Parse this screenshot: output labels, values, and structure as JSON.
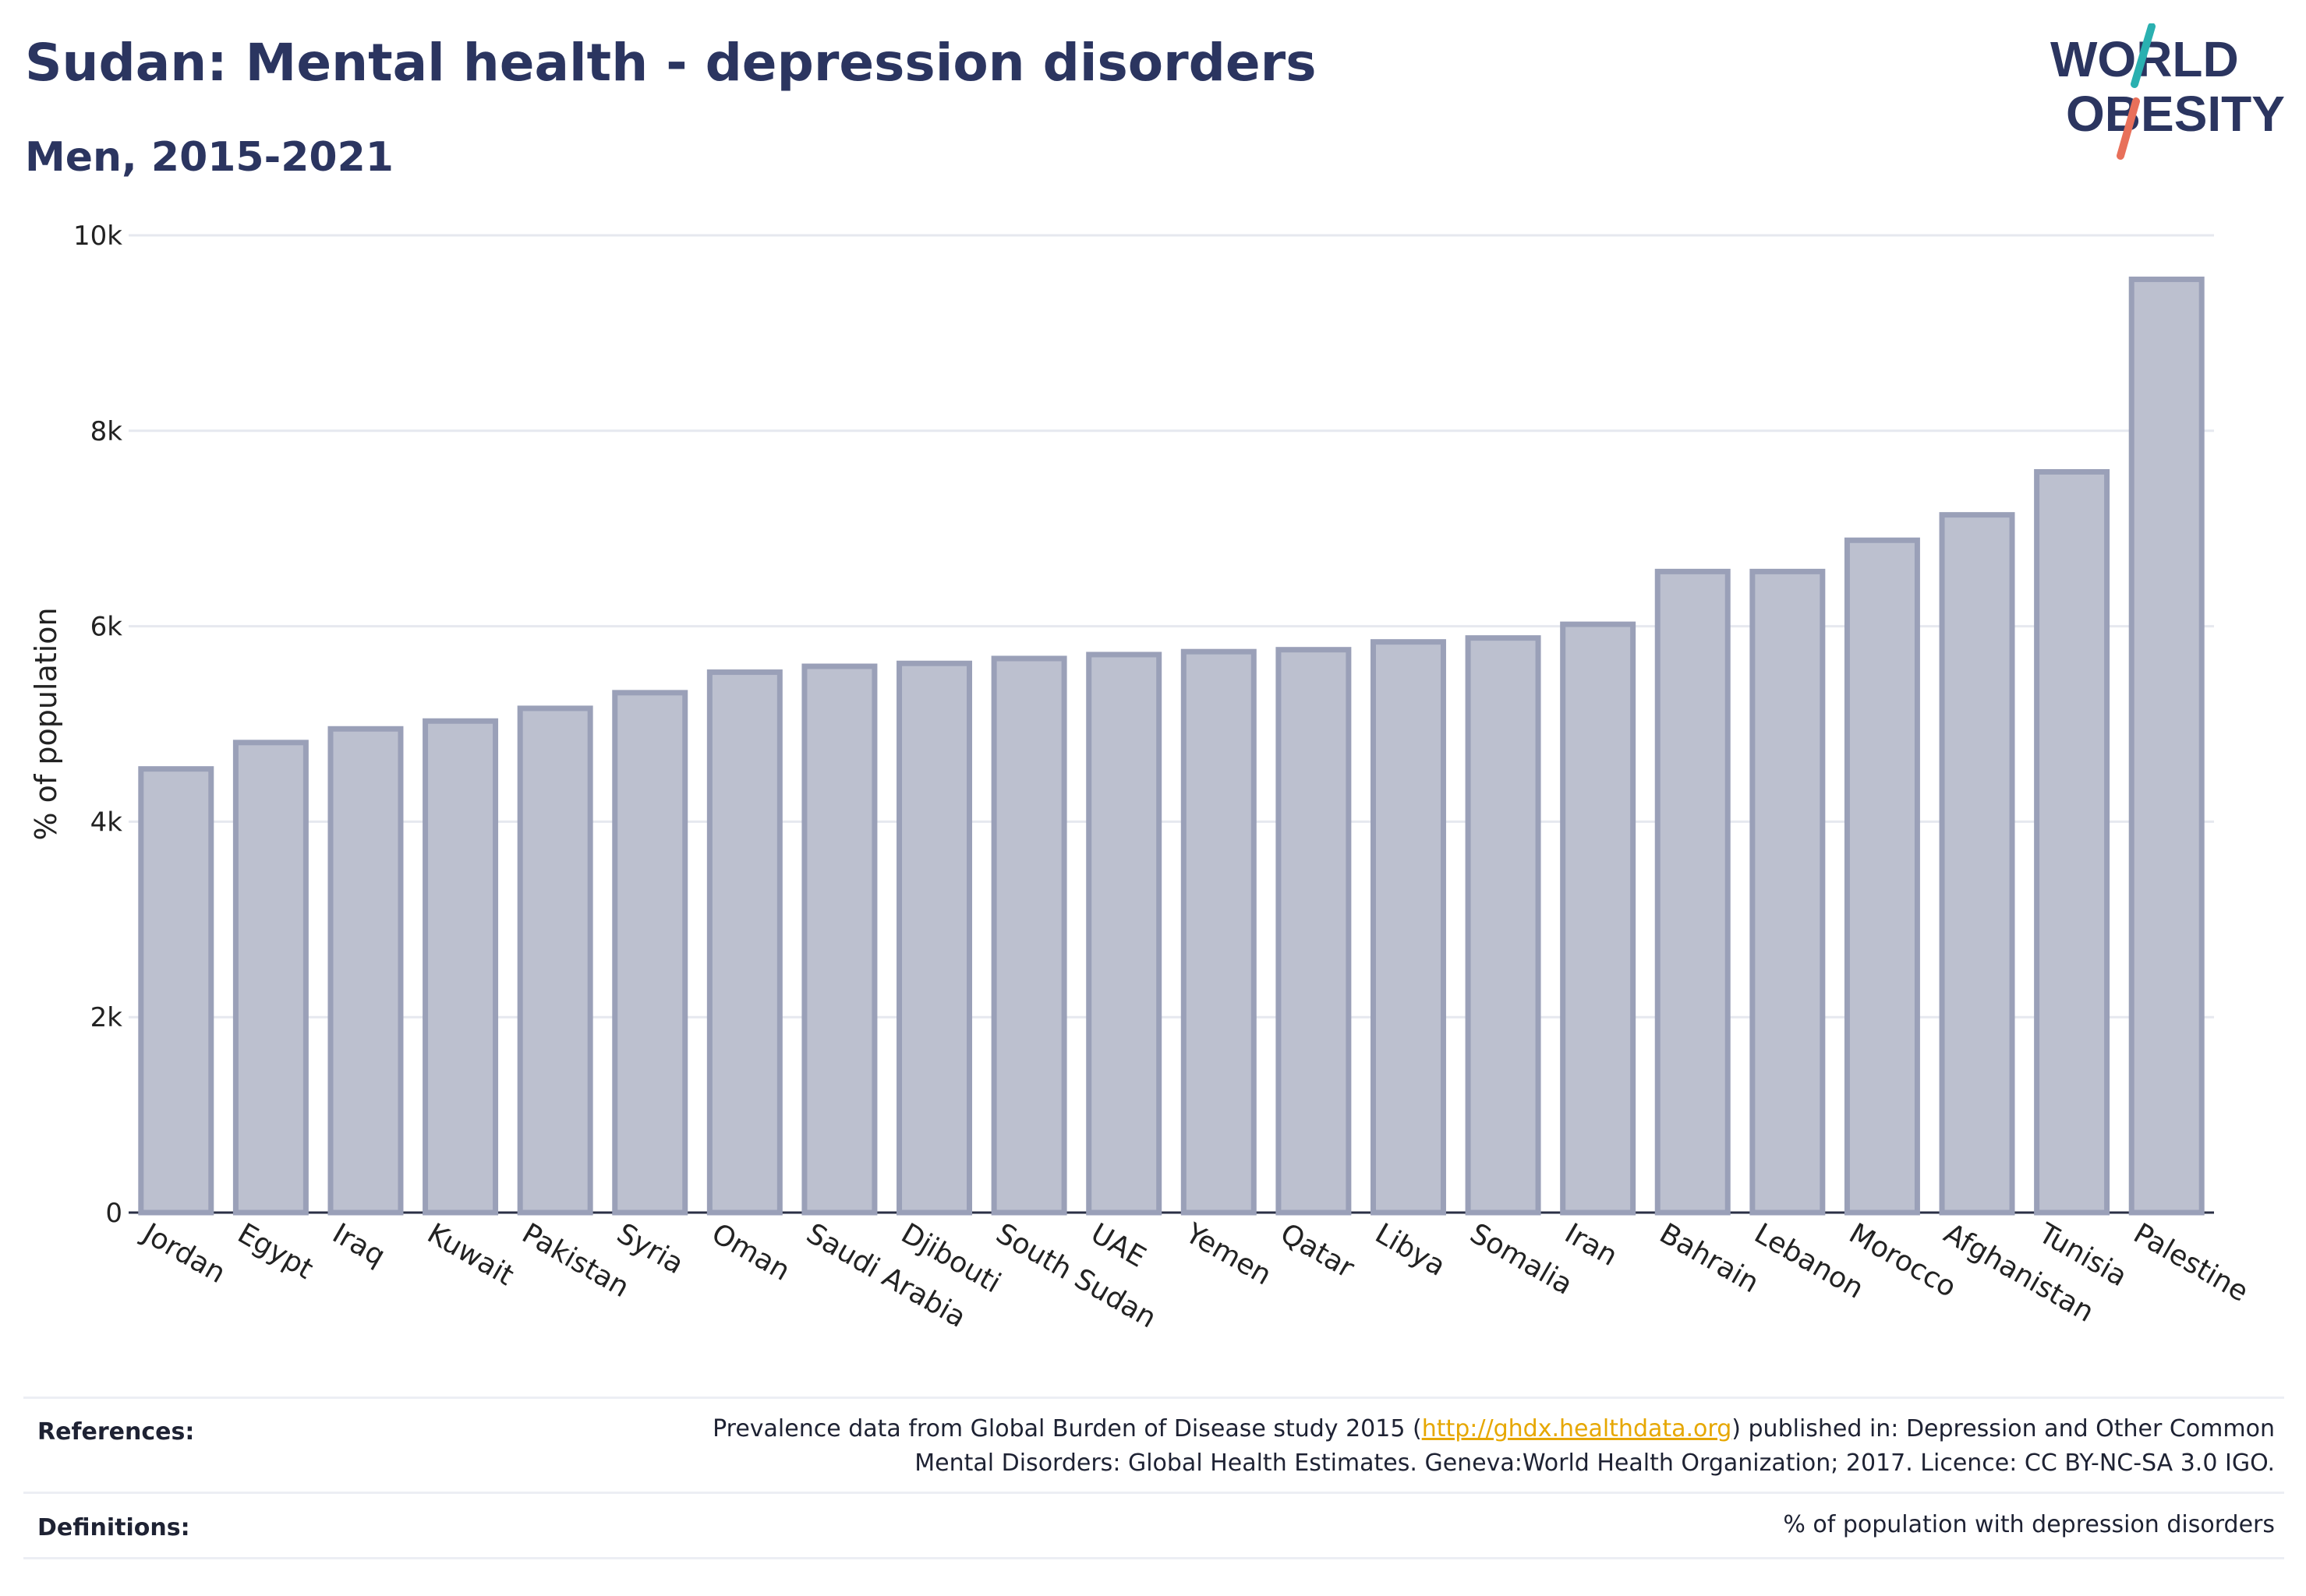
{
  "title": "Sudan: Mental health - depression disorders",
  "subtitle": "Men, 2015-2021",
  "logo": {
    "line1": "WORLD",
    "line2": "OBESITY"
  },
  "colors": {
    "bar_fill": "#bcc0cf",
    "bar_stroke": "#9aa0b8",
    "title": "#2b3560",
    "grid": "#e6e8ef",
    "logo_teal": "#2ab0b0",
    "logo_coral": "#e8705a",
    "link": "#e6a700"
  },
  "chart_data": {
    "type": "bar",
    "categories": [
      "Jordan",
      "Egypt",
      "Iraq",
      "Kuwait",
      "Pakistan",
      "Syria",
      "Oman",
      "Saudi Arabia",
      "Djibouti",
      "South Sudan",
      "UAE",
      "Yemen",
      "Qatar",
      "Libya",
      "Somalia",
      "Iran",
      "Bahrain",
      "Lebanon",
      "Morocco",
      "Afghanistan",
      "Tunisia",
      "Palestine"
    ],
    "values": [
      4540,
      4810,
      4950,
      5030,
      5160,
      5320,
      5530,
      5590,
      5620,
      5670,
      5710,
      5740,
      5760,
      5840,
      5880,
      6020,
      6560,
      6560,
      6880,
      7140,
      7580,
      9550
    ],
    "ylabel": "% of population",
    "ylim": [
      0,
      10000
    ],
    "yticks": [
      {
        "value": 0,
        "label": "0"
      },
      {
        "value": 2000,
        "label": "2k"
      },
      {
        "value": 4000,
        "label": "4k"
      },
      {
        "value": 6000,
        "label": "6k"
      },
      {
        "value": 8000,
        "label": "8k"
      },
      {
        "value": 10000,
        "label": "10k"
      }
    ],
    "grid": true
  },
  "footer": {
    "references_label": "References:",
    "references_pre": "Prevalence data from Global Burden of Disease study 2015 (",
    "references_link": "http://ghdx.healthdata.org",
    "references_post": ") published in: Depression and Other Common",
    "references_line2": "Mental Disorders: Global Health Estimates. Geneva:World Health Organization; 2017. Licence: CC BY-NC-SA 3.0 IGO.",
    "definitions_label": "Definitions:",
    "definitions_text": "% of population with depression disorders"
  }
}
